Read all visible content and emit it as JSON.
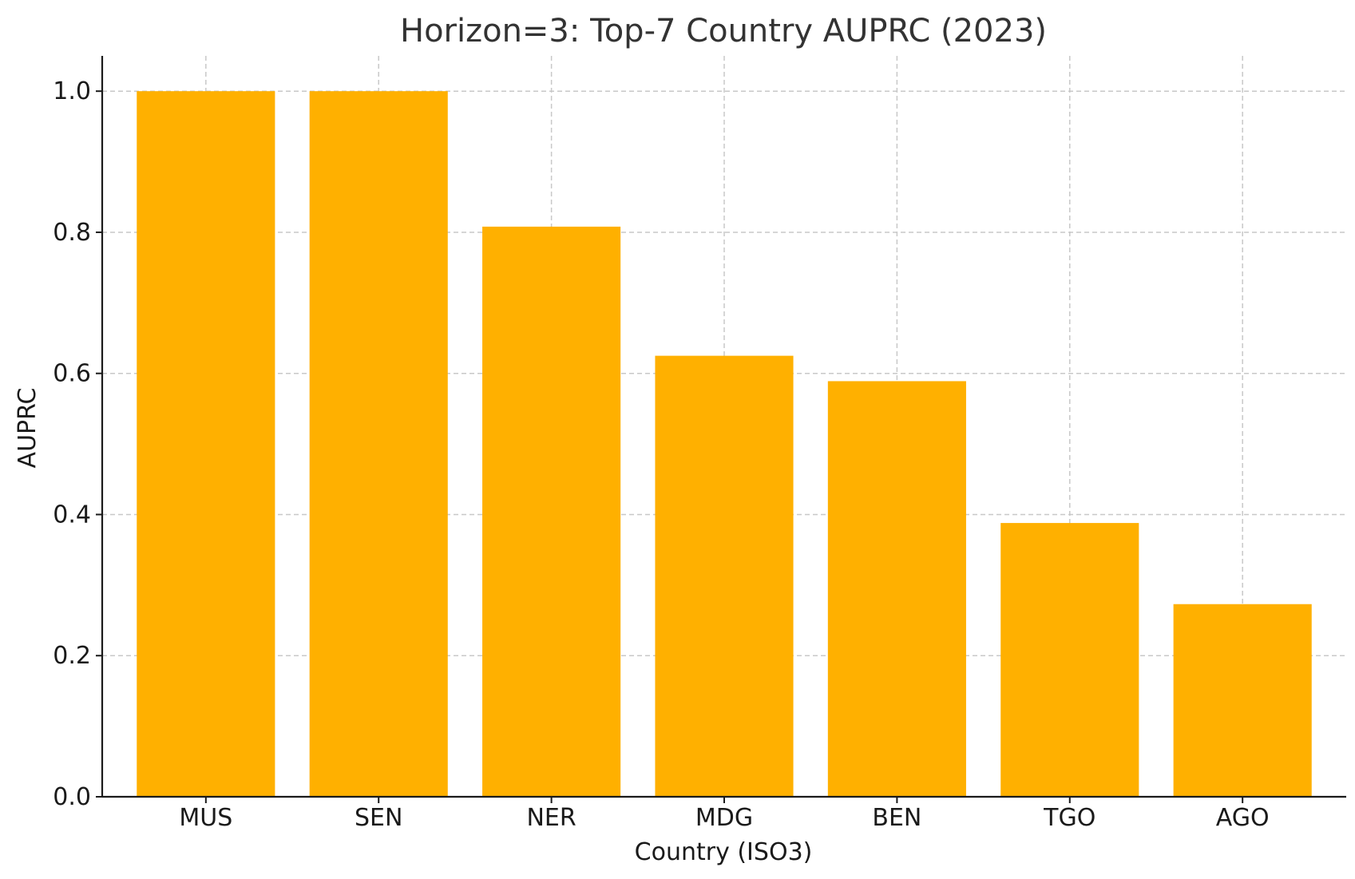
{
  "chart_data": {
    "type": "bar",
    "title": "Horizon=3: Top-7 Country AUPRC (2023)",
    "xlabel": "Country (ISO3)",
    "ylabel": "AUPRC",
    "categories": [
      "MUS",
      "SEN",
      "NER",
      "MDG",
      "BEN",
      "TGO",
      "AGO"
    ],
    "values": [
      1.0,
      1.0,
      0.808,
      0.625,
      0.589,
      0.388,
      0.273
    ],
    "ylim": [
      0,
      1.05
    ],
    "yticks": [
      0.0,
      0.2,
      0.4,
      0.6,
      0.8,
      1.0
    ],
    "ytick_labels": [
      "0.0",
      "0.2",
      "0.4",
      "0.6",
      "0.8",
      "1.0"
    ],
    "grid": true,
    "bar_color": "#FFB000"
  }
}
